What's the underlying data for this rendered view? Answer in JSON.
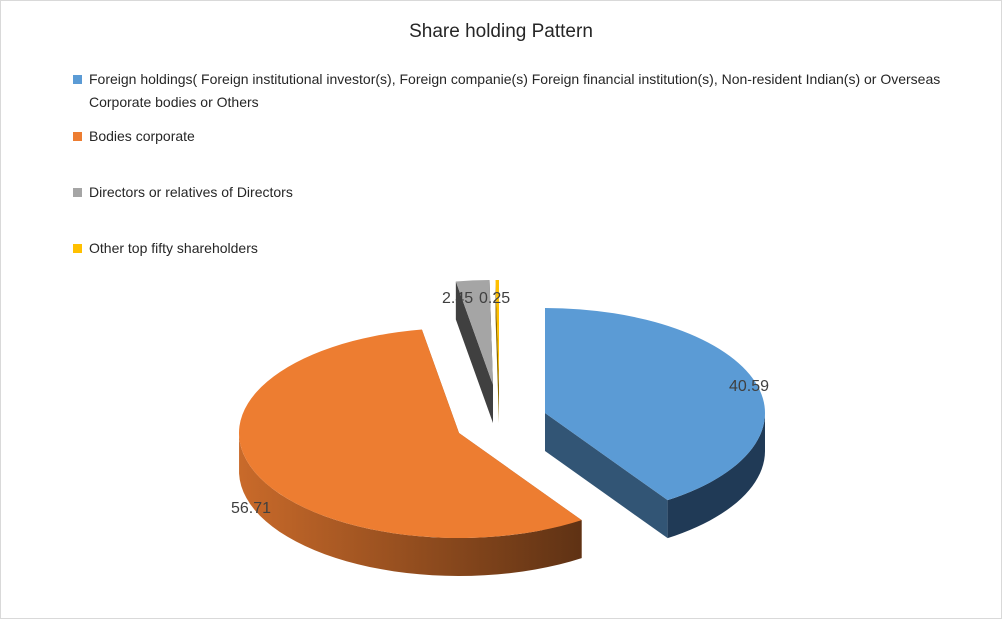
{
  "chart_data": {
    "type": "pie",
    "title": "Share holding Pattern",
    "legend_position": "top-left",
    "categories": [
      "Foreign holdings( Foreign institutional investor(s), Foreign companie(s) Foreign financial institution(s),  Non-resident Indian(s) or Overseas Corporate bodies or Others",
      "Bodies corporate",
      "Directors or relatives of Directors",
      "Other top fifty shareholders"
    ],
    "values": [
      40.59,
      56.71,
      2.45,
      0.25
    ],
    "data_labels": [
      "40.59",
      "56.71",
      "2.45",
      "0.25"
    ],
    "colors": [
      "#5b9bd5",
      "#ed7d31",
      "#a5a5a5",
      "#ffc000"
    ]
  }
}
